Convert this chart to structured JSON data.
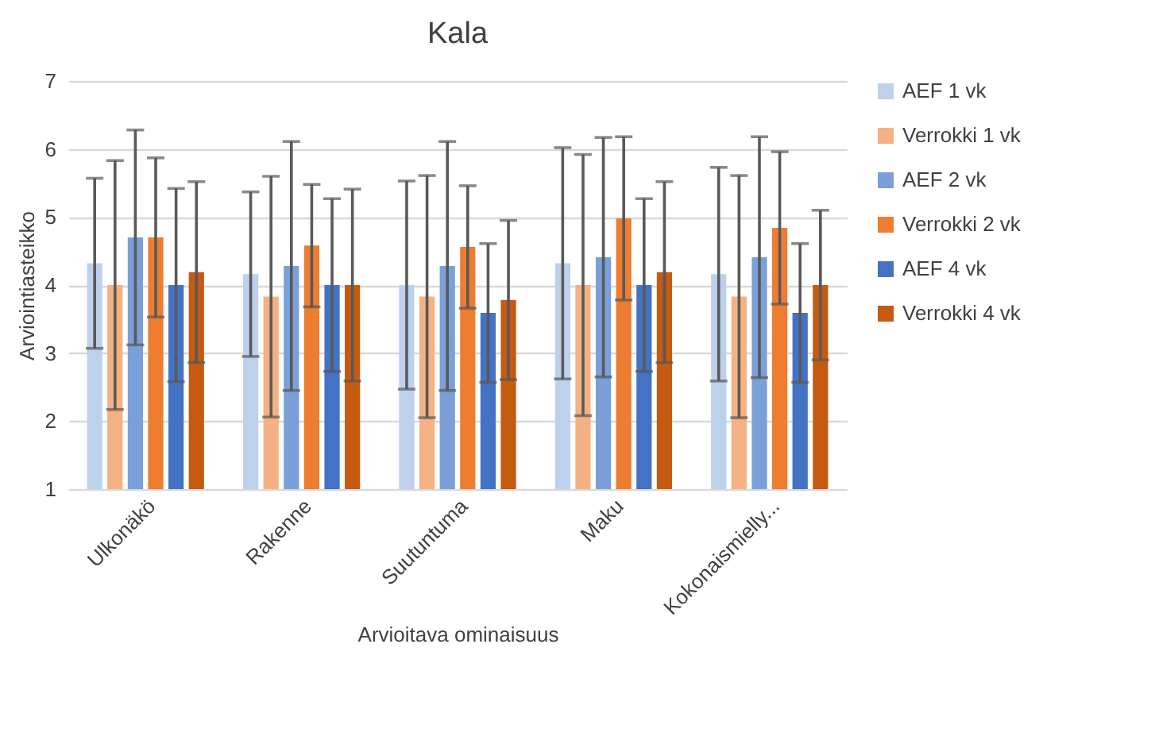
{
  "chart_data": {
    "type": "bar",
    "title": "Kala",
    "xlabel": "Arvioitava ominaisuus",
    "ylabel": "Arviointiasteikko",
    "categories": [
      "Ulkonäkö",
      "Rakenne",
      "Suutuntuma",
      "Maku",
      "Kokonaismielly..."
    ],
    "series": [
      {
        "name": "AEF 1 vk",
        "color": "#bdd0ec",
        "values": [
          4.32,
          4.16,
          4.0,
          4.32,
          4.16
        ],
        "errors": [
          1.25,
          1.21,
          1.53,
          1.7,
          1.57
        ]
      },
      {
        "name": "Verrokki 1 vk",
        "color": "#f4b183",
        "values": [
          4.0,
          3.83,
          3.83,
          4.0,
          3.83
        ],
        "errors": [
          1.83,
          1.77,
          1.78,
          1.92,
          1.78
        ]
      },
      {
        "name": "AEF 2 vk",
        "color": "#7a9fd9",
        "values": [
          4.7,
          4.28,
          4.28,
          4.41,
          4.41
        ],
        "errors": [
          1.58,
          1.83,
          1.83,
          1.76,
          1.77
        ]
      },
      {
        "name": "Verrokki 2 vk",
        "color": "#ed7d31",
        "values": [
          4.7,
          4.58,
          4.56,
          4.98,
          4.84
        ],
        "errors": [
          1.17,
          0.9,
          0.9,
          1.2,
          1.12
        ]
      },
      {
        "name": "AEF 4 vk",
        "color": "#4472c4",
        "values": [
          4.0,
          4.0,
          3.59,
          4.0,
          3.59
        ],
        "errors": [
          1.42,
          1.27,
          1.02,
          1.27,
          1.02
        ]
      },
      {
        "name": "Verrokki 4 vk",
        "color": "#c55a11",
        "values": [
          4.19,
          4.0,
          3.78,
          4.19,
          4.0
        ],
        "errors": [
          1.33,
          1.41,
          1.17,
          1.33,
          1.1
        ]
      }
    ],
    "ylim": [
      1,
      7
    ],
    "yticks": [
      1,
      2,
      3,
      4,
      5,
      6,
      7
    ],
    "grid": "y",
    "legend": "right"
  }
}
